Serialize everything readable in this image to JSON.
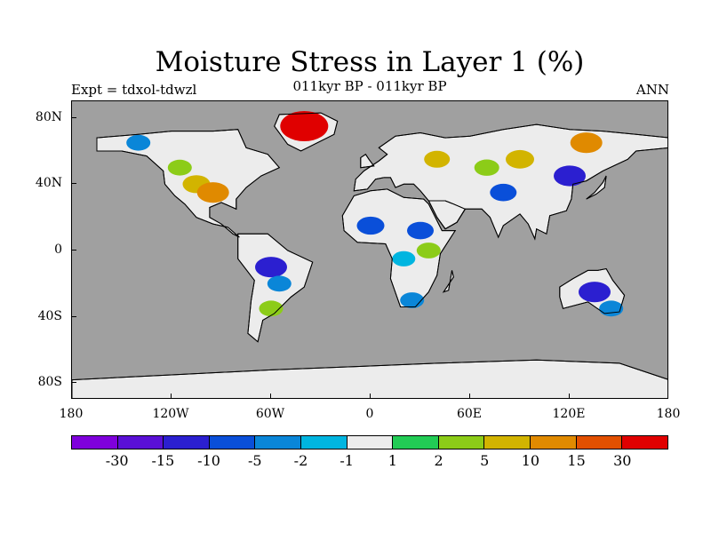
{
  "title": "Moisture Stress in Layer 1 (%)",
  "subtitle": "011kyr BP - 011kyr BP",
  "left_string": "Expt = tdxol-tdwzl",
  "right_string": "ANN",
  "y_axis_labels": [
    "80N",
    "40N",
    "0",
    "40S",
    "80S"
  ],
  "x_axis_labels": [
    "180",
    "120W",
    "60W",
    "0",
    "60E",
    "120E",
    "180"
  ],
  "colorbar": {
    "colors": [
      "#7f00dc",
      "#5a10d6",
      "#2b1fd0",
      "#0a4fd9",
      "#0a86d8",
      "#00b5e0",
      "#ececec",
      "#22cc55",
      "#8ccc18",
      "#d2b400",
      "#e08a00",
      "#e25000",
      "#e00000"
    ],
    "labels": [
      "-30",
      "-15",
      "-10",
      "-5",
      "-2",
      "-1",
      "1",
      "2",
      "5",
      "10",
      "15",
      "30"
    ]
  },
  "map": {
    "ocean_color": "#a0a0a0",
    "land_color": "#ececec",
    "coastline_color": "#000000"
  },
  "chart_data": {
    "type": "heatmap",
    "title": "Moisture Stress in Layer 1 (%)",
    "subtitle": "011kyr BP - 011kyr BP",
    "xlim": [
      -180,
      180
    ],
    "ylim": [
      -90,
      90
    ],
    "x_ticks": [
      "180",
      "120W",
      "60W",
      "0",
      "60E",
      "120E",
      "180"
    ],
    "y_ticks": [
      "80N",
      "40N",
      "0",
      "40S",
      "80S"
    ],
    "levels": [
      -30,
      -15,
      -10,
      -5,
      -2,
      -1,
      1,
      2,
      5,
      10,
      15,
      30
    ],
    "regions": [
      {
        "lon": -105,
        "lat": 40,
        "value": 7
      },
      {
        "lon": -95,
        "lat": 35,
        "value": 12
      },
      {
        "lon": -115,
        "lat": 50,
        "value": 3
      },
      {
        "lon": -140,
        "lat": 65,
        "value": -3
      },
      {
        "lon": -60,
        "lat": -10,
        "value": -12
      },
      {
        "lon": -55,
        "lat": -20,
        "value": -3
      },
      {
        "lon": -60,
        "lat": -35,
        "value": 3
      },
      {
        "lon": 0,
        "lat": 15,
        "value": -7
      },
      {
        "lon": 30,
        "lat": 12,
        "value": -6
      },
      {
        "lon": 20,
        "lat": -5,
        "value": -2
      },
      {
        "lon": 35,
        "lat": 0,
        "value": 3
      },
      {
        "lon": 25,
        "lat": -30,
        "value": -3
      },
      {
        "lon": 40,
        "lat": 55,
        "value": 5
      },
      {
        "lon": 70,
        "lat": 50,
        "value": 4
      },
      {
        "lon": 90,
        "lat": 55,
        "value": 8
      },
      {
        "lon": 130,
        "lat": 65,
        "value": 12
      },
      {
        "lon": 120,
        "lat": 45,
        "value": -12
      },
      {
        "lon": 80,
        "lat": 35,
        "value": -6
      },
      {
        "lon": 135,
        "lat": -25,
        "value": -12
      },
      {
        "lon": 145,
        "lat": -35,
        "value": -3
      },
      {
        "lon": -40,
        "lat": 75,
        "value": 30
      }
    ]
  }
}
